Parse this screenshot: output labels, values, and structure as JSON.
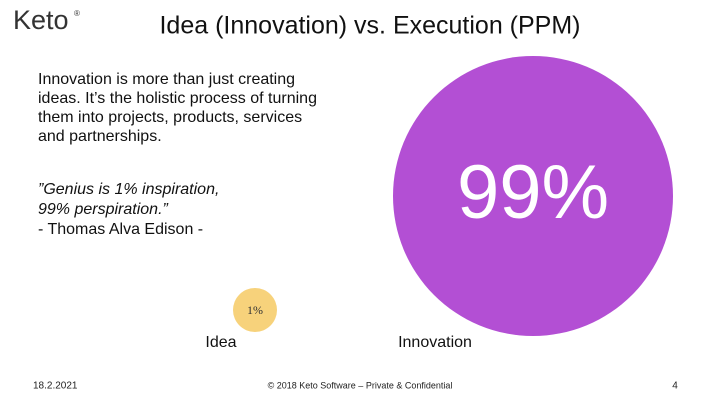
{
  "logo": {
    "text": "Keto",
    "mark": "®"
  },
  "title": "Idea (Innovation) vs. Execution (PPM)",
  "body": {
    "paragraph": [
      "Innovation is more than just creating",
      "ideas. It’s the holistic process of turning",
      "them into projects, products, services",
      "and partnerships."
    ],
    "quote": [
      "”Genius is 1% inspiration,",
      "99% perspiration.”"
    ],
    "author": "- Thomas Alva Edison -"
  },
  "circles": {
    "big": "99%",
    "small": "1%"
  },
  "labels": {
    "idea": "Idea",
    "innovation": "Innovation"
  },
  "footer": {
    "date": "18.2.2021",
    "copyright": "© 2018 Keto Software – Private & Confidential",
    "page": "4"
  }
}
